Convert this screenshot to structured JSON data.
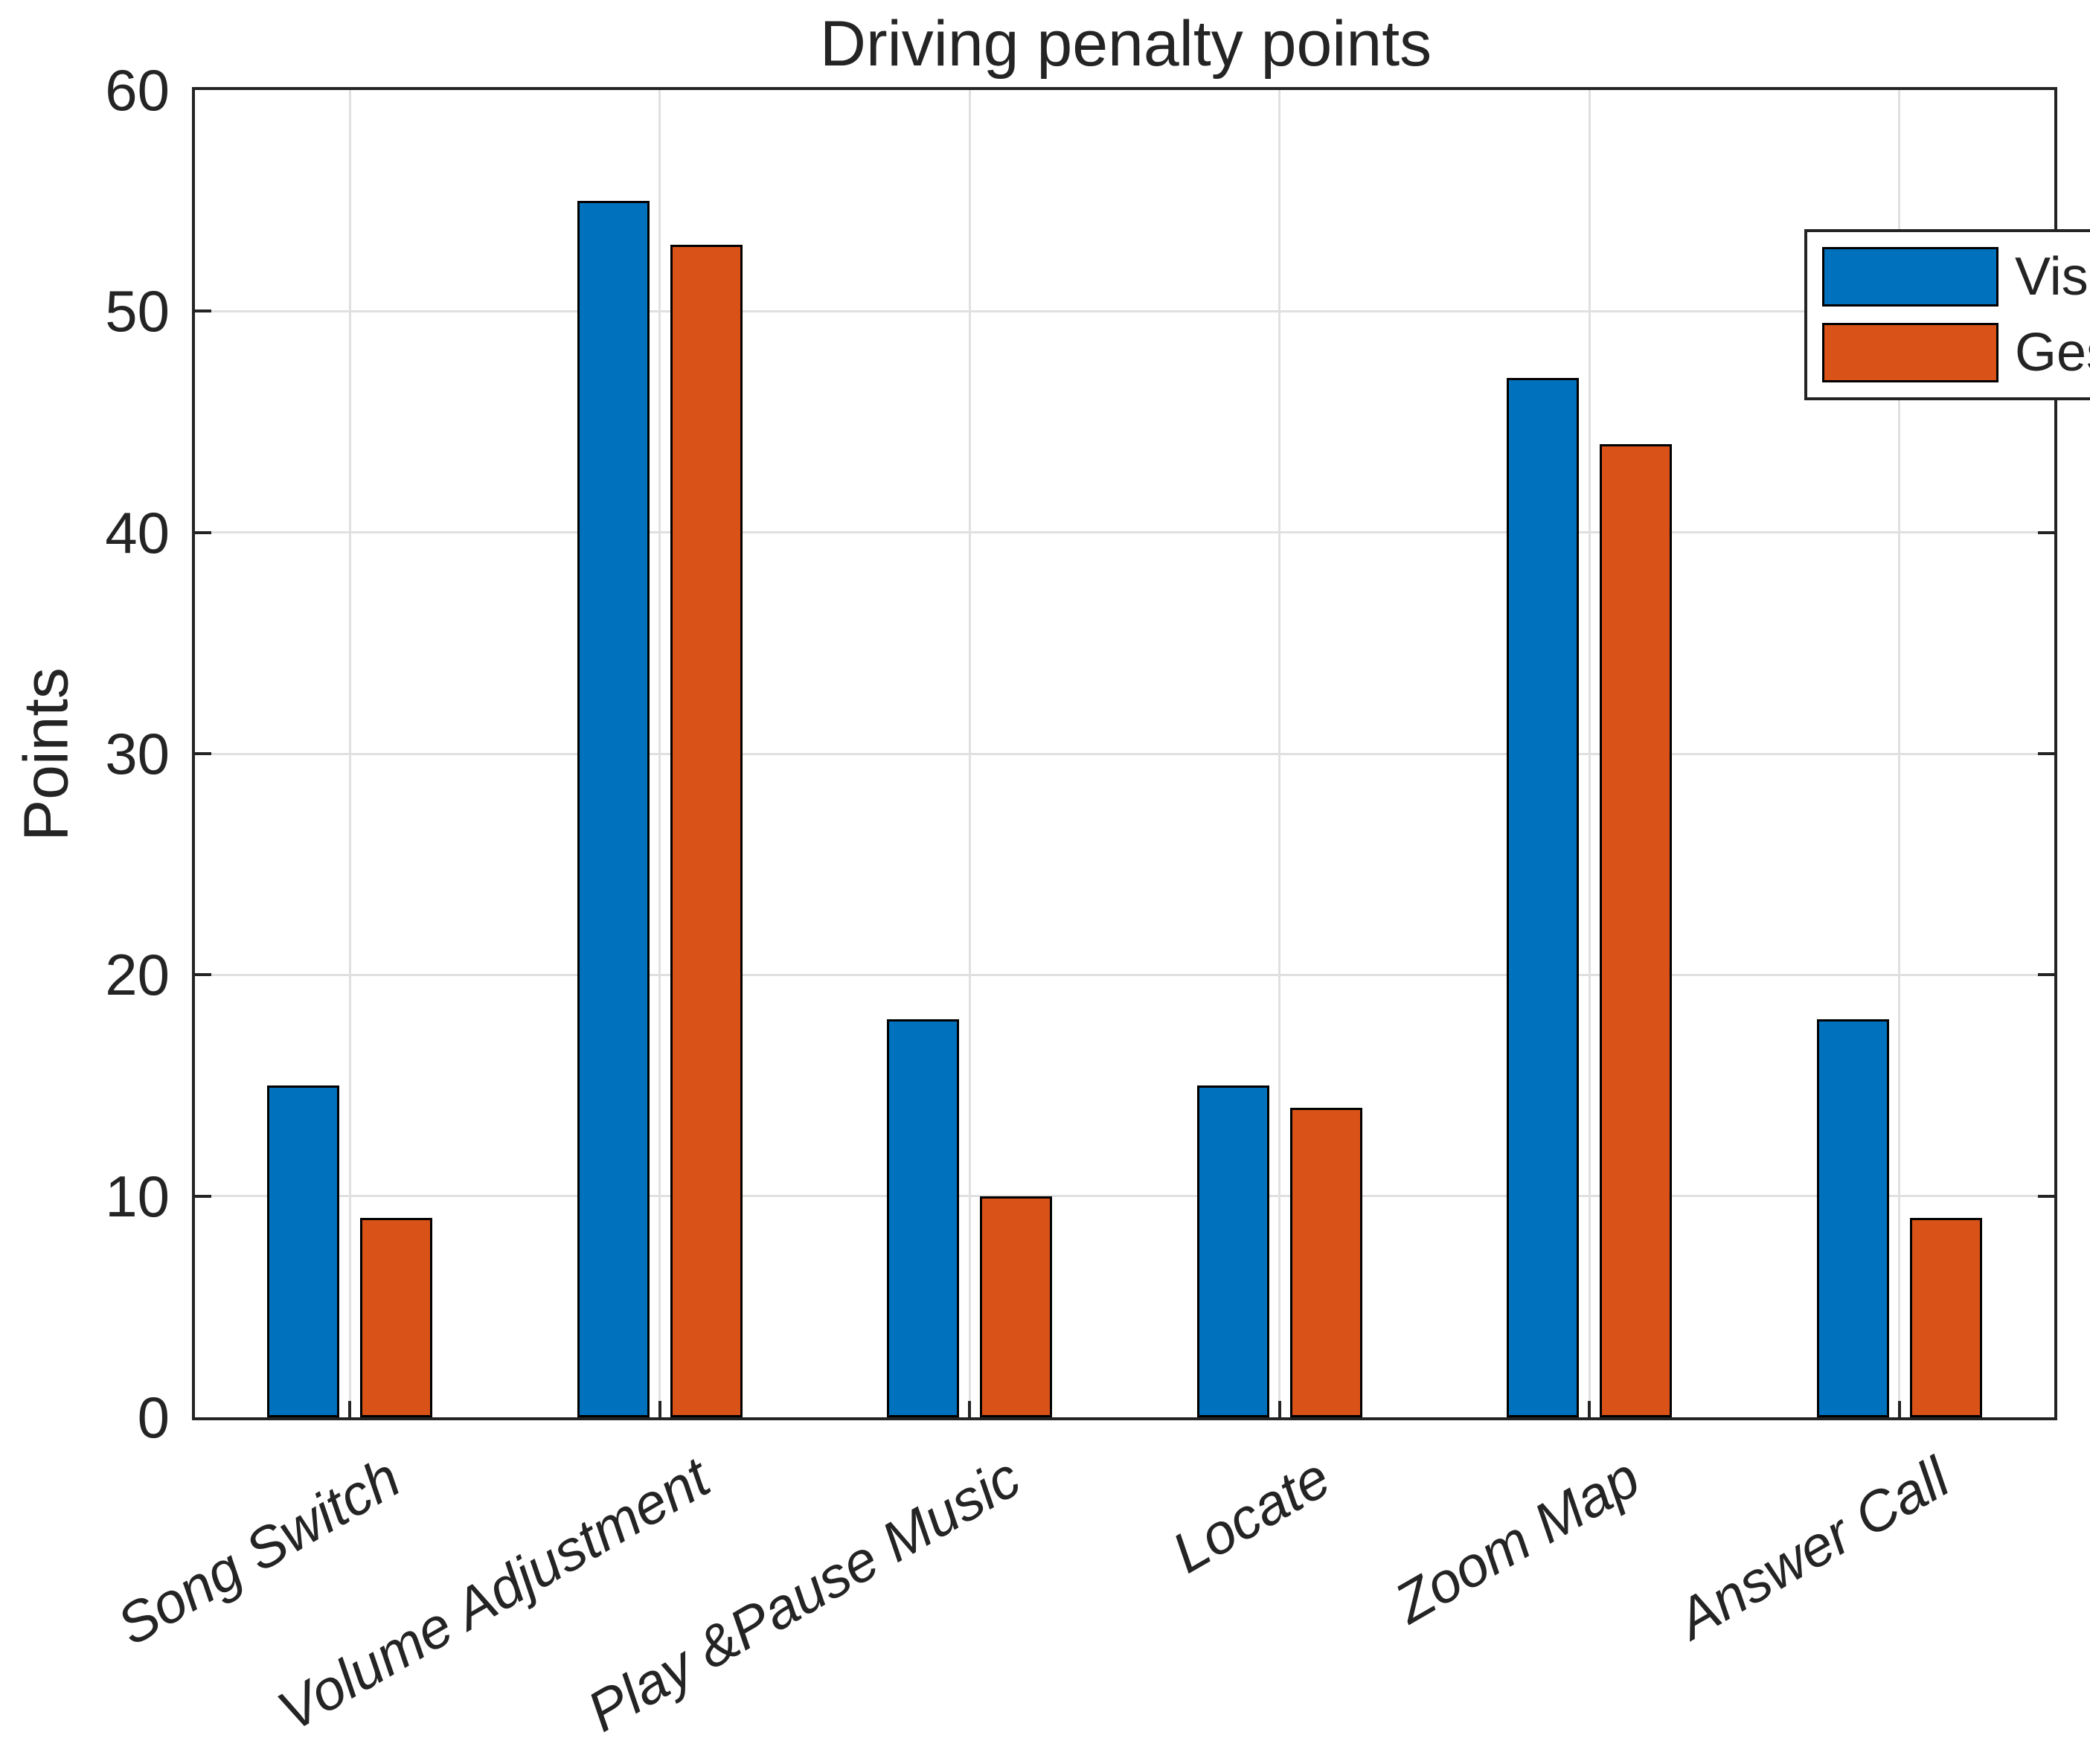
{
  "chart_data": {
    "type": "bar",
    "title": "Driving penalty points",
    "ylabel": "Points",
    "xlabel": "",
    "categories": [
      "Song Switch",
      "Volume Adjustment",
      "Play &Pause Music",
      "Locate",
      "Zoom Map",
      "Answer Call"
    ],
    "series": [
      {
        "name": "Visual",
        "color": "#0072BD",
        "values": [
          15,
          55,
          18,
          15,
          47,
          18
        ]
      },
      {
        "name": "Gesture",
        "color": "#D95319",
        "values": [
          9,
          53,
          10,
          14,
          44,
          9
        ]
      }
    ],
    "ylim": [
      0,
      60
    ],
    "yticks": [
      0,
      10,
      20,
      30,
      40,
      50,
      60
    ],
    "grid": true,
    "legend_position": "top-right",
    "bar_edge_color": "#000000"
  },
  "colors": {
    "axis": "#242424",
    "grid": "#e0e0e0",
    "background": "#ffffff",
    "text": "#242424"
  }
}
